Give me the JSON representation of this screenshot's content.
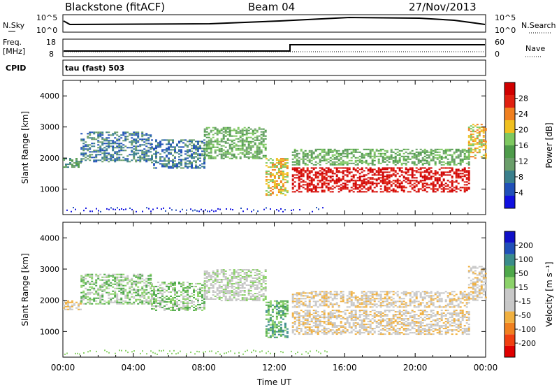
{
  "header": {
    "station": "Blackstone (fitACF)",
    "beam": "Beam 04",
    "date": "27/Nov/2013"
  },
  "strip_labels": {
    "nsky": "N.Sky",
    "nsky_ticks": [
      "10^5",
      "10^0"
    ],
    "nsearch": "N.Search",
    "nsearch_ticks": [
      "10^5",
      "10^0"
    ],
    "freq_line1": "Freq.",
    "freq_line2": "[MHz]",
    "freq_ticks": [
      "18",
      "8"
    ],
    "nave": "Nave",
    "nave_ticks": [
      "60",
      "0"
    ],
    "cpid": "CPID",
    "cpid_value": "tau (fast) 503"
  },
  "colors": {
    "power": [
      "#1010e0",
      "#2050b8",
      "#3a7f8c",
      "#6a9e6a",
      "#4e9b4a",
      "#7ec860",
      "#f0c020",
      "#f08020",
      "#e02010",
      "#d00000"
    ],
    "velocity": [
      "#e00000",
      "#f04010",
      "#f08020",
      "#f0b040",
      "#c8c8c8",
      "#c8c8c8",
      "#8cd26a",
      "#4ea84a",
      "#3a8c8a",
      "#2050b8",
      "#1010c8"
    ]
  },
  "chart_data": [
    {
      "type": "heatmap",
      "name": "power",
      "ylabel": "Slant Range [km]",
      "yticks": [
        "1000",
        "2000",
        "3000",
        "4000"
      ],
      "ylim": [
        180,
        4500
      ],
      "colorbar_label": "Power [dB]",
      "colorbar_ticks": [
        "4",
        "8",
        "12",
        "16",
        "20",
        "24",
        "28"
      ],
      "bands": [
        {
          "x": [
            0.0,
            1.0
          ],
          "y": [
            1700,
            2000
          ],
          "level": 3
        },
        {
          "x": [
            1.0,
            5.0
          ],
          "y": [
            1900,
            2850
          ],
          "level": 2
        },
        {
          "x": [
            5.0,
            8.0
          ],
          "y": [
            1700,
            2600
          ],
          "level": 2
        },
        {
          "x": [
            8.0,
            11.5
          ],
          "y": [
            2000,
            3000
          ],
          "level": 4
        },
        {
          "x": [
            11.5,
            12.8
          ],
          "y": [
            800,
            2000
          ],
          "level": 6
        },
        {
          "x": [
            13.0,
            23.0
          ],
          "y": [
            900,
            1700
          ],
          "level": 9
        },
        {
          "x": [
            13.0,
            23.0
          ],
          "y": [
            1800,
            2300
          ],
          "level": 4
        },
        {
          "x": [
            23.0,
            24.0
          ],
          "y": [
            2000,
            3100
          ],
          "level": 6
        }
      ]
    },
    {
      "type": "heatmap",
      "name": "velocity",
      "ylabel": "Slant Range [km]",
      "yticks": [
        "1000",
        "2000",
        "3000",
        "4000"
      ],
      "ylim": [
        180,
        4500
      ],
      "xlabel": "Time UT",
      "xticks": [
        "00:00",
        "04:00",
        "08:00",
        "12:00",
        "16:00",
        "20:00",
        "00:00"
      ],
      "colorbar_label": "Velocity [m s⁻¹]",
      "colorbar_ticks": [
        "200",
        "100",
        "50",
        "15",
        "-15",
        "-50",
        "-100",
        "-200"
      ],
      "bands": [
        {
          "x": [
            0.0,
            1.0
          ],
          "y": [
            1700,
            2000
          ],
          "level": 4
        },
        {
          "x": [
            1.0,
            5.0
          ],
          "y": [
            1900,
            2850
          ],
          "level": 6
        },
        {
          "x": [
            5.0,
            8.0
          ],
          "y": [
            1700,
            2600
          ],
          "level": 6
        },
        {
          "x": [
            8.0,
            11.5
          ],
          "y": [
            2000,
            3000
          ],
          "level": 5
        },
        {
          "x": [
            11.5,
            12.8
          ],
          "y": [
            800,
            2000
          ],
          "level": 7
        },
        {
          "x": [
            13.0,
            23.0
          ],
          "y": [
            900,
            1700
          ],
          "level": 4
        },
        {
          "x": [
            13.0,
            23.0
          ],
          "y": [
            1800,
            2300
          ],
          "level": 4
        },
        {
          "x": [
            23.0,
            24.0
          ],
          "y": [
            2000,
            3100
          ],
          "level": 4
        }
      ]
    }
  ]
}
